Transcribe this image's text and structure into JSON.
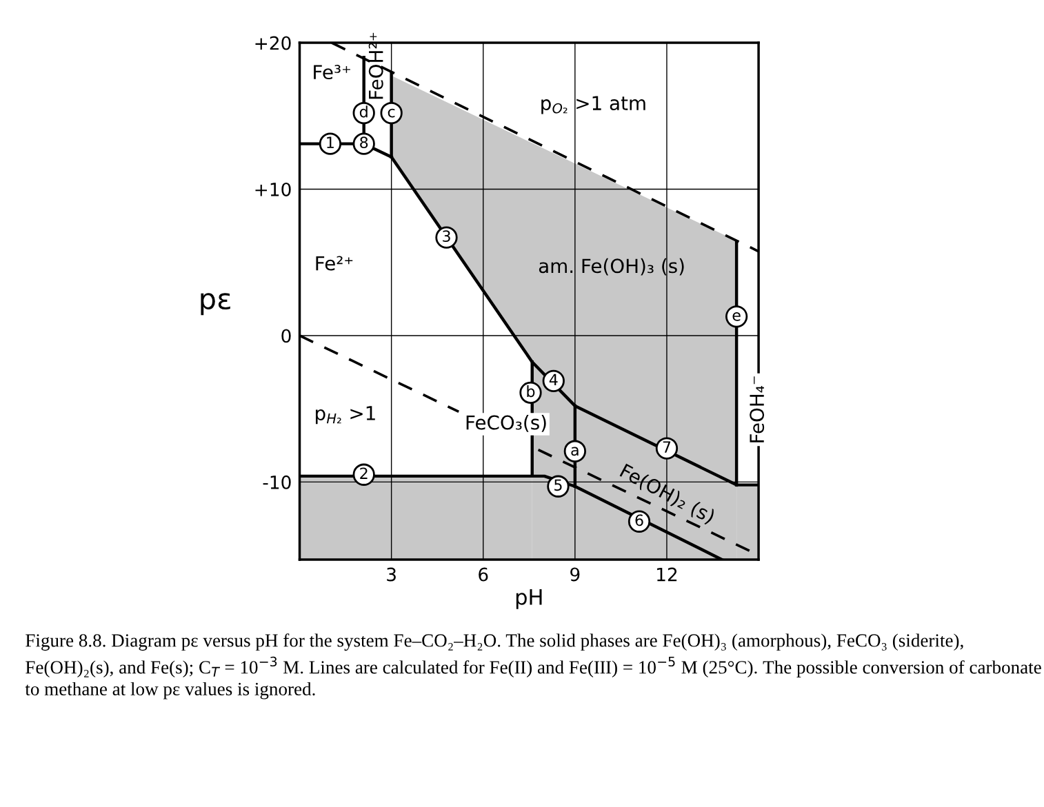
{
  "chart_data": {
    "type": "line",
    "xlabel": "pH",
    "ylabel": "pε",
    "xlim": [
      0,
      15
    ],
    "ylim": [
      -15.3,
      20
    ],
    "xticks": [
      3,
      6,
      9,
      12
    ],
    "yticks": [
      {
        "value": 20,
        "label": "+20"
      },
      {
        "value": 10,
        "label": "+10"
      },
      0,
      -10
    ],
    "grid": true,
    "legend": false,
    "series": [
      {
        "color": "#000000",
        "line_style": "solid",
        "x": [
          0,
          7.6,
          8.0,
          9,
          13.8
        ],
        "values": [
          -9.6,
          -9.6,
          -9.6,
          -10.3,
          -15.3
        ],
        "lower": [
          -15.3,
          -15.3,
          null,
          null,
          null
        ],
        "upper": [
          -9.6,
          -9.6,
          null,
          null,
          null
        ]
      },
      {
        "color": "#000000",
        "line_style": "solid",
        "x": [
          3,
          7.6,
          7.6,
          9,
          14.28
        ],
        "values": [
          12.2,
          -1.8,
          -1.8,
          -4.8,
          -10.2
        ],
        "lower": [
          12.2,
          -1.8,
          -15.3,
          -15.3,
          -15.3
        ],
        "upper": [
          17.75,
          13.15,
          13.15,
          11.75,
          6.47
        ]
      },
      {
        "color": "#000000",
        "line_style": "solid",
        "x": [
          0,
          2.1,
          3
        ],
        "values": [
          13.1,
          13.1,
          12.2
        ]
      },
      {
        "color": "#000000",
        "line_style": "solid",
        "x": [
          14.28,
          15
        ],
        "values": [
          -10.2,
          -10.2
        ],
        "lower": [
          -15.3,
          -15.3
        ],
        "upper": [
          -10.2,
          -10.2
        ]
      },
      {
        "color": "#000000",
        "line_style": "solid",
        "x": [
          3,
          3
        ],
        "values": [
          12.2,
          17.9
        ]
      },
      {
        "color": "#000000",
        "line_style": "solid",
        "x": [
          2.1,
          2.1
        ],
        "values": [
          13.1,
          19.0
        ]
      },
      {
        "color": "#000000",
        "line_style": "solid",
        "x": [
          14.28,
          14.28
        ],
        "values": [
          -10.2,
          6.4
        ]
      },
      {
        "color": "#000000",
        "line_style": "solid",
        "x": [
          7.6,
          7.6
        ],
        "values": [
          -1.8,
          -9.6
        ]
      },
      {
        "color": "#000000",
        "line_style": "solid",
        "x": [
          9,
          9
        ],
        "values": [
          -4.8,
          -10.3
        ]
      },
      {
        "color": "#000000",
        "line_style": "dashed",
        "x": [
          1.05,
          15
        ],
        "values": [
          20,
          5.75
        ]
      },
      {
        "color": "#000000",
        "line_style": "dashed",
        "x": [
          0,
          5.2
        ],
        "values": [
          0,
          -5.2
        ]
      },
      {
        "color": "#000000",
        "line_style": "dashed",
        "x": [
          7.8,
          15
        ],
        "values": [
          -7.8,
          -15
        ]
      }
    ],
    "annotations": [
      {
        "text": "1",
        "x": 1.0,
        "y": 13.1
      },
      {
        "text": "8",
        "x": 2.1,
        "y": 13.1
      },
      {
        "text": "d",
        "x": 2.1,
        "y": 15.2
      },
      {
        "text": "c",
        "x": 3.0,
        "y": 15.2
      },
      {
        "text": "3",
        "x": 4.8,
        "y": 6.7
      },
      {
        "text": "4",
        "x": 8.3,
        "y": -3.1
      },
      {
        "text": "b",
        "x": 7.55,
        "y": -3.9
      },
      {
        "text": "a",
        "x": 9.0,
        "y": -7.9
      },
      {
        "text": "7",
        "x": 12.0,
        "y": -7.7
      },
      {
        "text": "5",
        "x": 8.45,
        "y": -10.3
      },
      {
        "text": "6",
        "x": 11.1,
        "y": -12.7
      },
      {
        "text": "2",
        "x": 2.1,
        "y": -9.5
      },
      {
        "text": "e",
        "x": 14.28,
        "y": 1.3
      },
      "Fe³⁺",
      "FeOH²⁺",
      "p$_{O₂}$ >1 atm",
      "Fe²⁺",
      "am. Fe(OH)₃ (s)",
      "p$_{H₂}$ >1",
      "FeCO₃(s)",
      "Fe(OH)₂ (s)",
      "FeOH₄⁻",
      "Figure 8.8. Diagram pε versus pH for the system Fe–CO₂–H₂O. The solid phases are Fe(OH)₃ (amorphous), FeCO₃ (siderite), Fe(OH)₂(s), and Fe(s); C$_{T}$ = 10$^{−3}$ M. Lines are calculated for Fe(II) and Fe(III) = 10$^{−5}$ M (25°C). The possible conversion of carbonate to methane at low pε values is ignored."
    ]
  }
}
